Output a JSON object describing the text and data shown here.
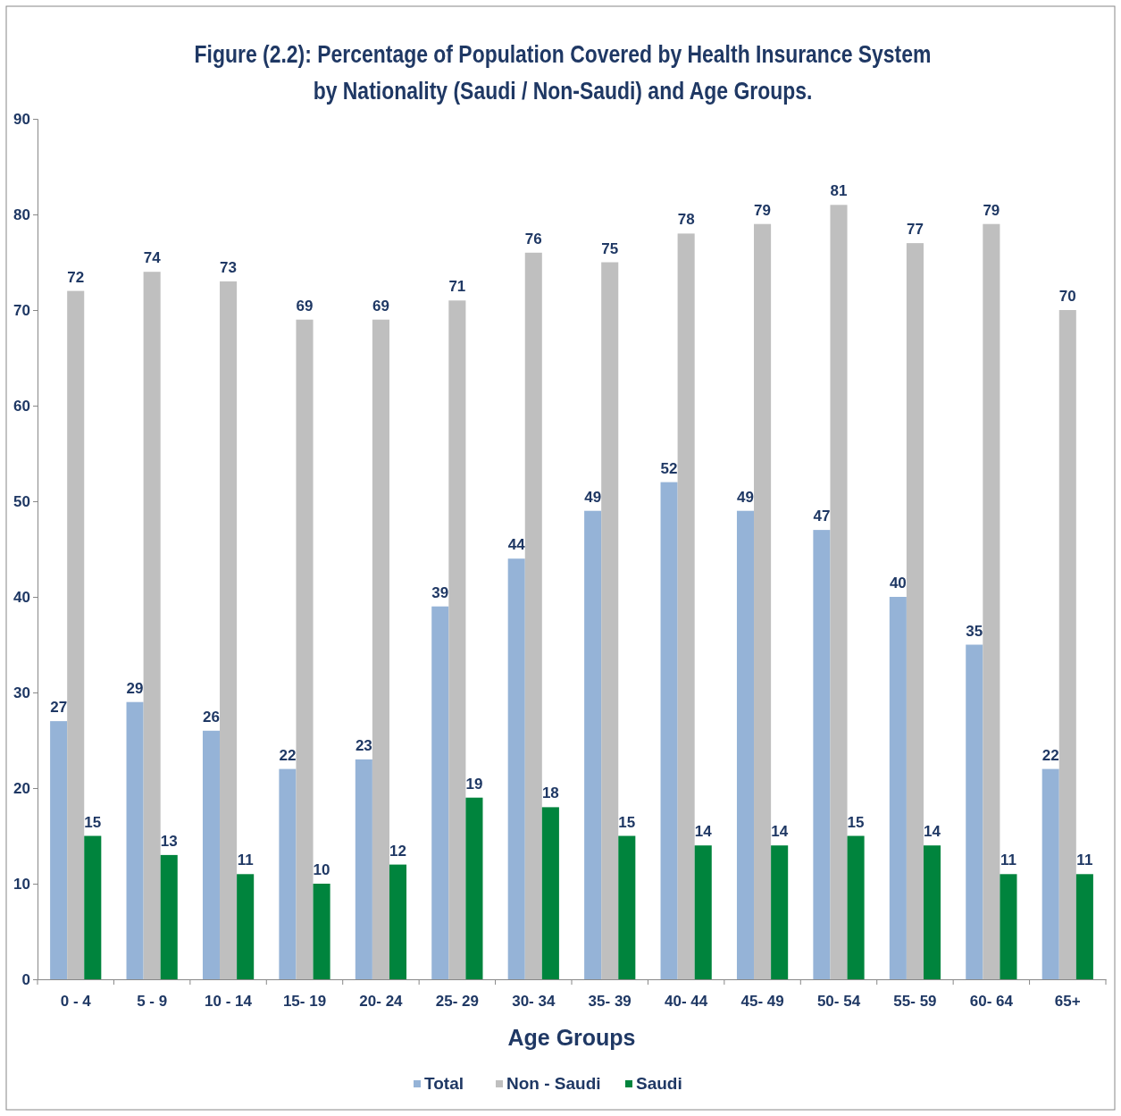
{
  "chart_data": {
    "type": "bar",
    "title": "Figure (2.2): Percentage of Population Covered by Health Insurance System by Nationality (Saudi / Non-Saudi) and Age Groups.",
    "xlabel": "Age Groups",
    "categories": [
      "0 - 4",
      "5 - 9",
      "10 - 14",
      "15- 19",
      "20- 24",
      "25- 29",
      "30- 34",
      "35- 39",
      "40- 44",
      "45- 49",
      "50- 54",
      "55- 59",
      "60- 64",
      "65+"
    ],
    "series": [
      {
        "name": "Total",
        "color": "#95b3d7",
        "values": [
          27,
          29,
          26,
          22,
          23,
          39,
          44,
          49,
          52,
          49,
          47,
          40,
          35,
          22
        ]
      },
      {
        "name": "Non - Saudi",
        "color": "#bfbfbf",
        "values": [
          72,
          74,
          73,
          69,
          69,
          71,
          76,
          75,
          78,
          79,
          81,
          77,
          79,
          70
        ]
      },
      {
        "name": "Saudi",
        "color": "#00843d",
        "values": [
          15,
          13,
          11,
          10,
          12,
          19,
          18,
          15,
          14,
          14,
          15,
          14,
          11,
          11
        ]
      }
    ],
    "ylim": [
      0,
      90
    ],
    "yticks": [
      0,
      10,
      20,
      30,
      40,
      50,
      60,
      70,
      80,
      90
    ],
    "grid": false,
    "legend": "bottom",
    "data_labels": true
  }
}
